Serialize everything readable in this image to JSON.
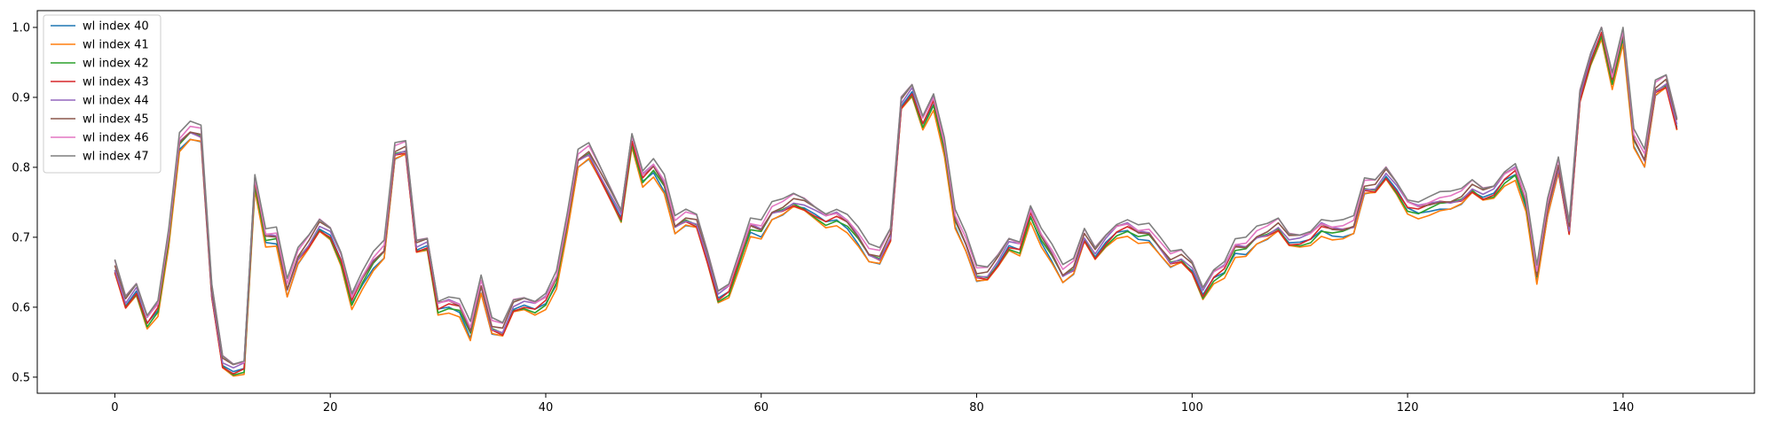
{
  "chart_data": {
    "type": "line",
    "title": "",
    "xlabel": "",
    "ylabel": "",
    "xlim": [
      -7.2,
      152.2
    ],
    "ylim": [
      0.477,
      1.024
    ],
    "xticks": [
      0,
      20,
      40,
      60,
      80,
      100,
      120,
      140
    ],
    "yticks": [
      0.5,
      0.6,
      0.7,
      0.8,
      0.9,
      1.0
    ],
    "ytick_labels": [
      "0.5",
      "0.6",
      "0.7",
      "0.8",
      "0.9",
      "1.0"
    ],
    "legend_position": "top-left",
    "grid": false,
    "base": [
      0.655,
      0.605,
      0.625,
      0.58,
      0.6,
      0.7,
      0.835,
      0.85,
      0.845,
      0.62,
      0.52,
      0.51,
      0.515,
      0.78,
      0.7,
      0.7,
      0.625,
      0.67,
      0.69,
      0.715,
      0.705,
      0.67,
      0.61,
      0.64,
      0.665,
      0.68,
      0.82,
      0.825,
      0.685,
      0.69,
      0.6,
      0.605,
      0.6,
      0.565,
      0.63,
      0.57,
      0.565,
      0.6,
      0.605,
      0.6,
      0.61,
      0.64,
      0.72,
      0.81,
      0.82,
      0.79,
      0.76,
      0.73,
      0.84,
      0.785,
      0.8,
      0.775,
      0.715,
      0.725,
      0.72,
      0.67,
      0.615,
      0.625,
      0.67,
      0.715,
      0.71,
      0.735,
      0.74,
      0.75,
      0.745,
      0.735,
      0.725,
      0.73,
      0.72,
      0.7,
      0.675,
      0.67,
      0.7,
      0.89,
      0.91,
      0.865,
      0.895,
      0.83,
      0.725,
      0.69,
      0.645,
      0.645,
      0.665,
      0.69,
      0.685,
      0.735,
      0.7,
      0.675,
      0.645,
      0.655,
      0.7,
      0.675,
      0.695,
      0.71,
      0.715,
      0.705,
      0.705,
      0.685,
      0.665,
      0.67,
      0.655,
      0.62,
      0.645,
      0.655,
      0.685,
      0.685,
      0.7,
      0.705,
      0.715,
      0.695,
      0.695,
      0.7,
      0.715,
      0.71,
      0.71,
      0.715,
      0.77,
      0.77,
      0.79,
      0.77,
      0.745,
      0.74,
      0.745,
      0.75,
      0.75,
      0.755,
      0.77,
      0.76,
      0.765,
      0.785,
      0.795,
      0.75,
      0.645,
      0.74,
      0.8,
      0.71,
      0.9,
      0.955,
      0.995,
      0.925,
      0.99,
      0.84,
      0.81,
      0.91,
      0.92,
      0.86
    ],
    "series": [
      {
        "name": "wl index 40",
        "color": "#1f77b4",
        "offset": -0.006
      },
      {
        "name": "wl index 41",
        "color": "#ff7f0e",
        "offset": -0.01
      },
      {
        "name": "wl index 42",
        "color": "#2ca02c",
        "offset": -0.004
      },
      {
        "name": "wl index 43",
        "color": "#d62728",
        "offset": -0.002
      },
      {
        "name": "wl index 44",
        "color": "#9467bd",
        "offset": 0.002
      },
      {
        "name": "wl index 45",
        "color": "#8c564b",
        "offset": 0.004
      },
      {
        "name": "wl index 46",
        "color": "#e377c2",
        "offset": 0.008
      },
      {
        "name": "wl index 47",
        "color": "#7f7f7f",
        "offset": 0.012
      }
    ]
  }
}
